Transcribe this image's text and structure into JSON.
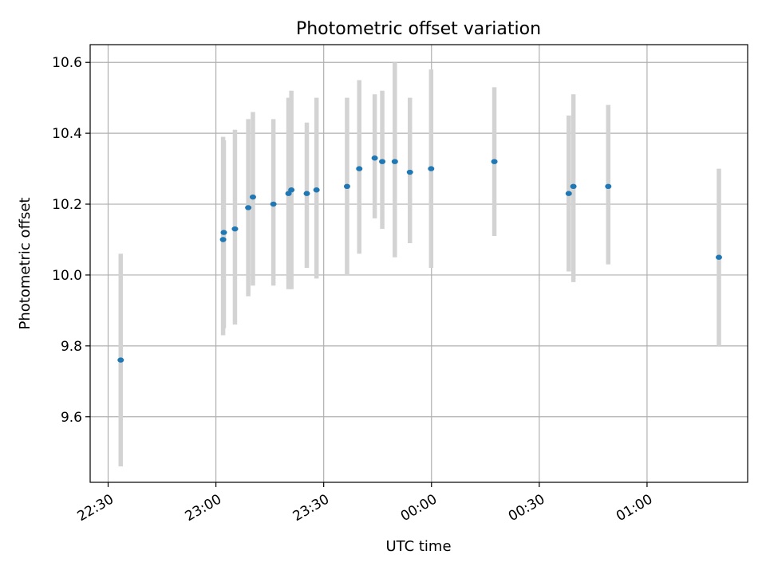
{
  "chart_data": {
    "type": "scatter",
    "title": "Photometric offset variation",
    "xlabel": "UTC time",
    "ylabel": "Photometric offset",
    "grid": true,
    "x_ticks": [
      "22:30",
      "23:00",
      "23:30",
      "00:00",
      "00:30",
      "01:00"
    ],
    "y_ticks": [
      9.6,
      9.8,
      10.0,
      10.2,
      10.4,
      10.6
    ],
    "xlim": [
      "22:25",
      "01:28"
    ],
    "ylim": [
      9.415,
      10.65
    ],
    "colors": {
      "points": "#1f77b4",
      "error_bars": "#d3d3d3"
    },
    "points": [
      {
        "time": "22:33.5",
        "value": 9.76,
        "lower": 9.46,
        "upper": 10.06
      },
      {
        "time": "23:02.0",
        "value": 10.1,
        "lower": 9.83,
        "upper": 10.39
      },
      {
        "time": "23:02.2",
        "value": 10.12,
        "lower": 9.85,
        "upper": 10.38
      },
      {
        "time": "23:05.3",
        "value": 10.13,
        "lower": 9.86,
        "upper": 10.41
      },
      {
        "time": "23:09.0",
        "value": 10.19,
        "lower": 9.94,
        "upper": 10.44
      },
      {
        "time": "23:10.3",
        "value": 10.22,
        "lower": 9.97,
        "upper": 10.46
      },
      {
        "time": "23:16.0",
        "value": 10.2,
        "lower": 9.97,
        "upper": 10.44
      },
      {
        "time": "23:20.2",
        "value": 10.23,
        "lower": 9.96,
        "upper": 10.5
      },
      {
        "time": "23:21.0",
        "value": 10.24,
        "lower": 9.96,
        "upper": 10.52
      },
      {
        "time": "23:25.3",
        "value": 10.23,
        "lower": 10.02,
        "upper": 10.43
      },
      {
        "time": "23:28.0",
        "value": 10.24,
        "lower": 9.99,
        "upper": 10.5
      },
      {
        "time": "23:36.5",
        "value": 10.25,
        "lower": 10.0,
        "upper": 10.5
      },
      {
        "time": "23:39.9",
        "value": 10.3,
        "lower": 10.06,
        "upper": 10.55
      },
      {
        "time": "23:44.2",
        "value": 10.33,
        "lower": 10.16,
        "upper": 10.51
      },
      {
        "time": "23:46.3",
        "value": 10.32,
        "lower": 10.13,
        "upper": 10.52
      },
      {
        "time": "23:49.8",
        "value": 10.32,
        "lower": 10.05,
        "upper": 10.6
      },
      {
        "time": "23:54.0",
        "value": 10.29,
        "lower": 10.09,
        "upper": 10.5
      },
      {
        "time": "23:59.9",
        "value": 10.3,
        "lower": 10.02,
        "upper": 10.58
      },
      {
        "time": "00:17.5",
        "value": 10.32,
        "lower": 10.11,
        "upper": 10.53
      },
      {
        "time": "00:38.2",
        "value": 10.23,
        "lower": 10.01,
        "upper": 10.45
      },
      {
        "time": "00:39.5",
        "value": 10.25,
        "lower": 9.98,
        "upper": 10.51
      },
      {
        "time": "00:49.2",
        "value": 10.25,
        "lower": 10.03,
        "upper": 10.48
      },
      {
        "time": "01:20.0",
        "value": 10.05,
        "lower": 9.8,
        "upper": 10.3
      }
    ]
  }
}
